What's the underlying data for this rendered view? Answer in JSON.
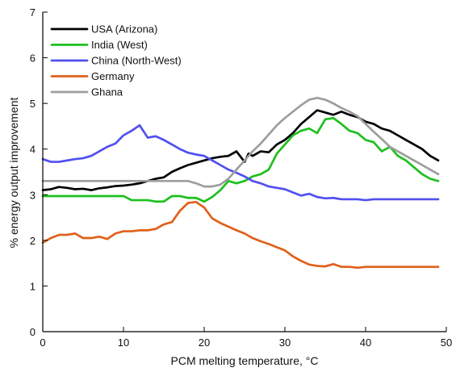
{
  "chart_data": {
    "type": "line",
    "title": "",
    "xlabel": "PCM melting temperature, °C",
    "ylabel": "% energy output improvement",
    "xlim": [
      0,
      50
    ],
    "ylim": [
      0,
      7
    ],
    "xticks": [
      "0",
      "10",
      "20",
      "30",
      "40",
      "50"
    ],
    "yticks": [
      "0",
      "1",
      "2",
      "3",
      "4",
      "5",
      "6",
      "7"
    ],
    "grid": false,
    "legend_position": "top-left",
    "series": [
      {
        "name": "USA (Arizona)",
        "color": "#000000",
        "points": [
          [
            0,
            3.1
          ],
          [
            1,
            3.12
          ],
          [
            2,
            3.17
          ],
          [
            3,
            3.15
          ],
          [
            4,
            3.12
          ],
          [
            5,
            3.13
          ],
          [
            6,
            3.1
          ],
          [
            7,
            3.14
          ],
          [
            8,
            3.16
          ],
          [
            9,
            3.19
          ],
          [
            10,
            3.2
          ],
          [
            11,
            3.22
          ],
          [
            12,
            3.25
          ],
          [
            13,
            3.3
          ],
          [
            14,
            3.35
          ],
          [
            15,
            3.38
          ],
          [
            16,
            3.5
          ],
          [
            17,
            3.58
          ],
          [
            18,
            3.65
          ],
          [
            19,
            3.7
          ],
          [
            20,
            3.75
          ],
          [
            21,
            3.8
          ],
          [
            22,
            3.83
          ],
          [
            23,
            3.85
          ],
          [
            24,
            3.95
          ],
          [
            25,
            3.72
          ],
          [
            25.5,
            3.9
          ],
          [
            26,
            3.85
          ],
          [
            27,
            3.95
          ],
          [
            28,
            3.93
          ],
          [
            29,
            4.1
          ],
          [
            30,
            4.2
          ],
          [
            31,
            4.35
          ],
          [
            32,
            4.55
          ],
          [
            33,
            4.7
          ],
          [
            34,
            4.85
          ],
          [
            35,
            4.8
          ],
          [
            36,
            4.75
          ],
          [
            37,
            4.82
          ],
          [
            38,
            4.75
          ],
          [
            39,
            4.7
          ],
          [
            40,
            4.6
          ],
          [
            41,
            4.55
          ],
          [
            42,
            4.45
          ],
          [
            43,
            4.4
          ],
          [
            44,
            4.3
          ],
          [
            45,
            4.2
          ],
          [
            46,
            4.1
          ],
          [
            47,
            4.0
          ],
          [
            48,
            3.85
          ],
          [
            49,
            3.75
          ]
        ]
      },
      {
        "name": "India (West)",
        "color": "#1ec01e",
        "points": [
          [
            0,
            2.97
          ],
          [
            5,
            2.97
          ],
          [
            10,
            2.97
          ],
          [
            11,
            2.88
          ],
          [
            13,
            2.88
          ],
          [
            14,
            2.85
          ],
          [
            15,
            2.85
          ],
          [
            16,
            2.97
          ],
          [
            17,
            2.97
          ],
          [
            18,
            2.93
          ],
          [
            19,
            2.93
          ],
          [
            20,
            2.85
          ],
          [
            21,
            2.95
          ],
          [
            22,
            3.1
          ],
          [
            23,
            3.3
          ],
          [
            24,
            3.25
          ],
          [
            25,
            3.3
          ],
          [
            26,
            3.4
          ],
          [
            27,
            3.45
          ],
          [
            28,
            3.55
          ],
          [
            29,
            3.9
          ],
          [
            30,
            4.1
          ],
          [
            31,
            4.3
          ],
          [
            32,
            4.4
          ],
          [
            33,
            4.45
          ],
          [
            34,
            4.35
          ],
          [
            35,
            4.65
          ],
          [
            36,
            4.68
          ],
          [
            37,
            4.55
          ],
          [
            38,
            4.4
          ],
          [
            39,
            4.35
          ],
          [
            40,
            4.2
          ],
          [
            41,
            4.15
          ],
          [
            42,
            3.95
          ],
          [
            43,
            4.05
          ],
          [
            44,
            3.85
          ],
          [
            45,
            3.75
          ],
          [
            46,
            3.6
          ],
          [
            47,
            3.45
          ],
          [
            48,
            3.35
          ],
          [
            49,
            3.3
          ]
        ]
      },
      {
        "name": "China (North-West)",
        "color": "#5050f0",
        "points": [
          [
            0,
            3.78
          ],
          [
            1,
            3.72
          ],
          [
            2,
            3.72
          ],
          [
            3,
            3.75
          ],
          [
            4,
            3.78
          ],
          [
            5,
            3.8
          ],
          [
            6,
            3.85
          ],
          [
            7,
            3.95
          ],
          [
            8,
            4.05
          ],
          [
            9,
            4.12
          ],
          [
            10,
            4.3
          ],
          [
            11,
            4.4
          ],
          [
            12,
            4.52
          ],
          [
            13,
            4.25
          ],
          [
            14,
            4.28
          ],
          [
            15,
            4.2
          ],
          [
            16,
            4.1
          ],
          [
            17,
            4.0
          ],
          [
            18,
            3.92
          ],
          [
            19,
            3.88
          ],
          [
            20,
            3.85
          ],
          [
            21,
            3.75
          ],
          [
            22,
            3.65
          ],
          [
            23,
            3.55
          ],
          [
            24,
            3.48
          ],
          [
            25,
            3.4
          ],
          [
            26,
            3.3
          ],
          [
            27,
            3.25
          ],
          [
            28,
            3.18
          ],
          [
            29,
            3.15
          ],
          [
            30,
            3.12
          ],
          [
            31,
            3.05
          ],
          [
            32,
            2.98
          ],
          [
            33,
            3.02
          ],
          [
            34,
            2.95
          ],
          [
            35,
            2.92
          ],
          [
            36,
            2.93
          ],
          [
            37,
            2.9
          ],
          [
            38,
            2.9
          ],
          [
            39,
            2.9
          ],
          [
            40,
            2.88
          ],
          [
            41,
            2.9
          ],
          [
            42,
            2.9
          ],
          [
            44,
            2.9
          ],
          [
            46,
            2.9
          ],
          [
            48,
            2.9
          ],
          [
            49,
            2.9
          ]
        ]
      },
      {
        "name": "Germany",
        "color": "#e0601a",
        "points": [
          [
            0,
            1.95
          ],
          [
            1,
            2.05
          ],
          [
            2,
            2.12
          ],
          [
            3,
            2.12
          ],
          [
            4,
            2.15
          ],
          [
            5,
            2.05
          ],
          [
            6,
            2.05
          ],
          [
            7,
            2.08
          ],
          [
            8,
            2.03
          ],
          [
            9,
            2.15
          ],
          [
            10,
            2.2
          ],
          [
            11,
            2.2
          ],
          [
            12,
            2.22
          ],
          [
            13,
            2.22
          ],
          [
            14,
            2.25
          ],
          [
            15,
            2.35
          ],
          [
            16,
            2.4
          ],
          [
            17,
            2.65
          ],
          [
            18,
            2.82
          ],
          [
            19,
            2.84
          ],
          [
            20,
            2.72
          ],
          [
            21,
            2.48
          ],
          [
            22,
            2.38
          ],
          [
            23,
            2.3
          ],
          [
            24,
            2.22
          ],
          [
            25,
            2.15
          ],
          [
            26,
            2.05
          ],
          [
            27,
            1.98
          ],
          [
            28,
            1.92
          ],
          [
            29,
            1.85
          ],
          [
            30,
            1.78
          ],
          [
            31,
            1.65
          ],
          [
            32,
            1.55
          ],
          [
            33,
            1.47
          ],
          [
            34,
            1.44
          ],
          [
            35,
            1.43
          ],
          [
            36,
            1.48
          ],
          [
            37,
            1.42
          ],
          [
            38,
            1.42
          ],
          [
            39,
            1.4
          ],
          [
            40,
            1.42
          ],
          [
            42,
            1.42
          ],
          [
            44,
            1.42
          ],
          [
            46,
            1.42
          ],
          [
            48,
            1.42
          ],
          [
            49,
            1.42
          ]
        ]
      },
      {
        "name": "Ghana",
        "color": "#9e9e9e",
        "points": [
          [
            0,
            3.3
          ],
          [
            5,
            3.3
          ],
          [
            10,
            3.3
          ],
          [
            15,
            3.3
          ],
          [
            17,
            3.3
          ],
          [
            18,
            3.3
          ],
          [
            19,
            3.25
          ],
          [
            20,
            3.18
          ],
          [
            21,
            3.18
          ],
          [
            22,
            3.22
          ],
          [
            23,
            3.35
          ],
          [
            24,
            3.55
          ],
          [
            25,
            3.75
          ],
          [
            26,
            3.95
          ],
          [
            27,
            4.12
          ],
          [
            28,
            4.32
          ],
          [
            29,
            4.52
          ],
          [
            30,
            4.68
          ],
          [
            31,
            4.82
          ],
          [
            32,
            4.96
          ],
          [
            33,
            5.08
          ],
          [
            34,
            5.12
          ],
          [
            35,
            5.08
          ],
          [
            36,
            5.0
          ],
          [
            37,
            4.9
          ],
          [
            38,
            4.82
          ],
          [
            39,
            4.72
          ],
          [
            40,
            4.55
          ],
          [
            41,
            4.38
          ],
          [
            42,
            4.22
          ],
          [
            43,
            4.05
          ],
          [
            44,
            3.95
          ],
          [
            45,
            3.85
          ],
          [
            46,
            3.75
          ],
          [
            47,
            3.65
          ],
          [
            48,
            3.55
          ],
          [
            49,
            3.45
          ]
        ]
      }
    ]
  }
}
